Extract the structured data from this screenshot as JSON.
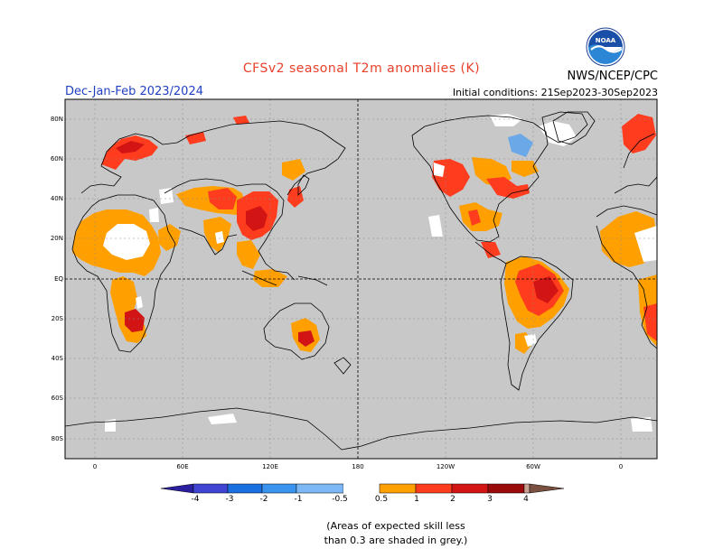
{
  "title": "CFSv2 seasonal T2m anomalies (K)",
  "season": "Dec-Jan-Feb 2023/2024",
  "initial_conditions": "Initial conditions: 21Sep2023-30Sep2023",
  "agency": "NWS/NCEP/CPC",
  "logo_text": "NOAA",
  "lat_labels": [
    "80N",
    "60N",
    "40N",
    "20N",
    "EQ",
    "20S",
    "40S",
    "60S",
    "80S"
  ],
  "lon_labels": [
    "0",
    "60E",
    "120E",
    "180",
    "120W",
    "60W",
    "0"
  ],
  "colorbar": {
    "tick_labels": [
      "-4",
      "-3",
      "-2",
      "-1",
      "-0.5",
      "0.5",
      "1",
      "2",
      "3",
      "4"
    ],
    "colors": [
      "#2a1fa0",
      "#3f45d2",
      "#1a6fe0",
      "#3a93ee",
      "#7cb8f5",
      "#ffffff",
      "#ffa000",
      "#ff3c1e",
      "#d21414",
      "#9a0a0a",
      "#c8a090",
      "#7a5040"
    ]
  },
  "note": {
    "line1": "(Areas of expected skill less",
    "line2": "than 0.3 are shaded in grey.)"
  },
  "colors": {
    "land_grey": "#c8c8c8",
    "orange": "#ffa000",
    "red": "#ff3c1e",
    "dark_red": "#d21414",
    "light_blue": "#6aa8e8",
    "title_red": "#e8402a",
    "season_blue": "#2040c0"
  }
}
